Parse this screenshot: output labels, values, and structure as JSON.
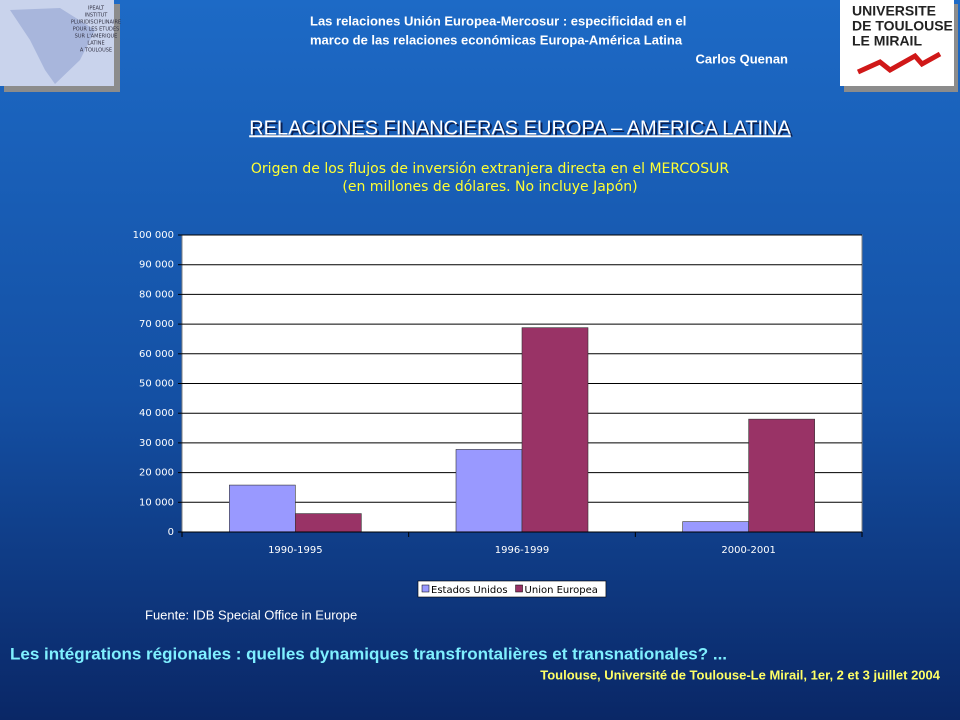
{
  "header": {
    "lines": [
      "Las relaciones Unión Europea-Mercosur : especificidad en el",
      "marco de las relaciones económicas Europa-América Latina",
      "Carlos Quenan"
    ],
    "left_logo": [
      "IPEALT",
      "INSTITUT",
      "PLURIDISCIPLINAIRE",
      "POUR LES ETUDES",
      "SUR L'AMERIQUE",
      "LATINE",
      "A TOULOUSE"
    ],
    "right_logo": [
      "UNIVERSITE",
      "DE TOULOUSE",
      "LE MIRAIL"
    ]
  },
  "slide_title": "RELACIONES FINANCIERAS EUROPA – AMERICA LATINA",
  "chart_data": {
    "type": "bar",
    "title": [
      "Origen de los flujos de inversión extranjera directa en el MERCOSUR",
      "(en millones de dólares. No incluye Japón)"
    ],
    "categories": [
      "1990-1995",
      "1996-1999",
      "2000-2001"
    ],
    "series": [
      {
        "name": "Estados Unidos",
        "color": "#9999ff",
        "values": [
          15800,
          27800,
          3500
        ]
      },
      {
        "name": "Union Europea",
        "color": "#993366",
        "values": [
          6200,
          68800,
          38000
        ]
      }
    ],
    "ylim": [
      0,
      100000
    ],
    "yticks": [
      0,
      {
        "value": 10000,
        "label": "10 000"
      },
      {
        "value": 20000,
        "label": "20 000"
      },
      {
        "value": 30000,
        "label": "30 000"
      },
      {
        "value": 40000,
        "label": "40 000"
      },
      {
        "value": 50000,
        "label": "50 000"
      },
      {
        "value": 60000,
        "label": "60 000"
      },
      {
        "value": 70000,
        "label": "70 000"
      },
      {
        "value": 80000,
        "label": "80 000"
      },
      {
        "value": 90000,
        "label": "90 000"
      },
      {
        "value": 100000,
        "label": "100 000"
      }
    ],
    "grid": true,
    "legend": "bottom"
  },
  "source": "Fuente:  IDB Special Office in Europe",
  "footer": {
    "main": "Les intégrations régionales : quelles dynamiques transfrontalières et transnationales? ...",
    "sub": "Toulouse, Université de Toulouse-Le Mirail, 1er, 2 et 3 juillet 2004"
  }
}
